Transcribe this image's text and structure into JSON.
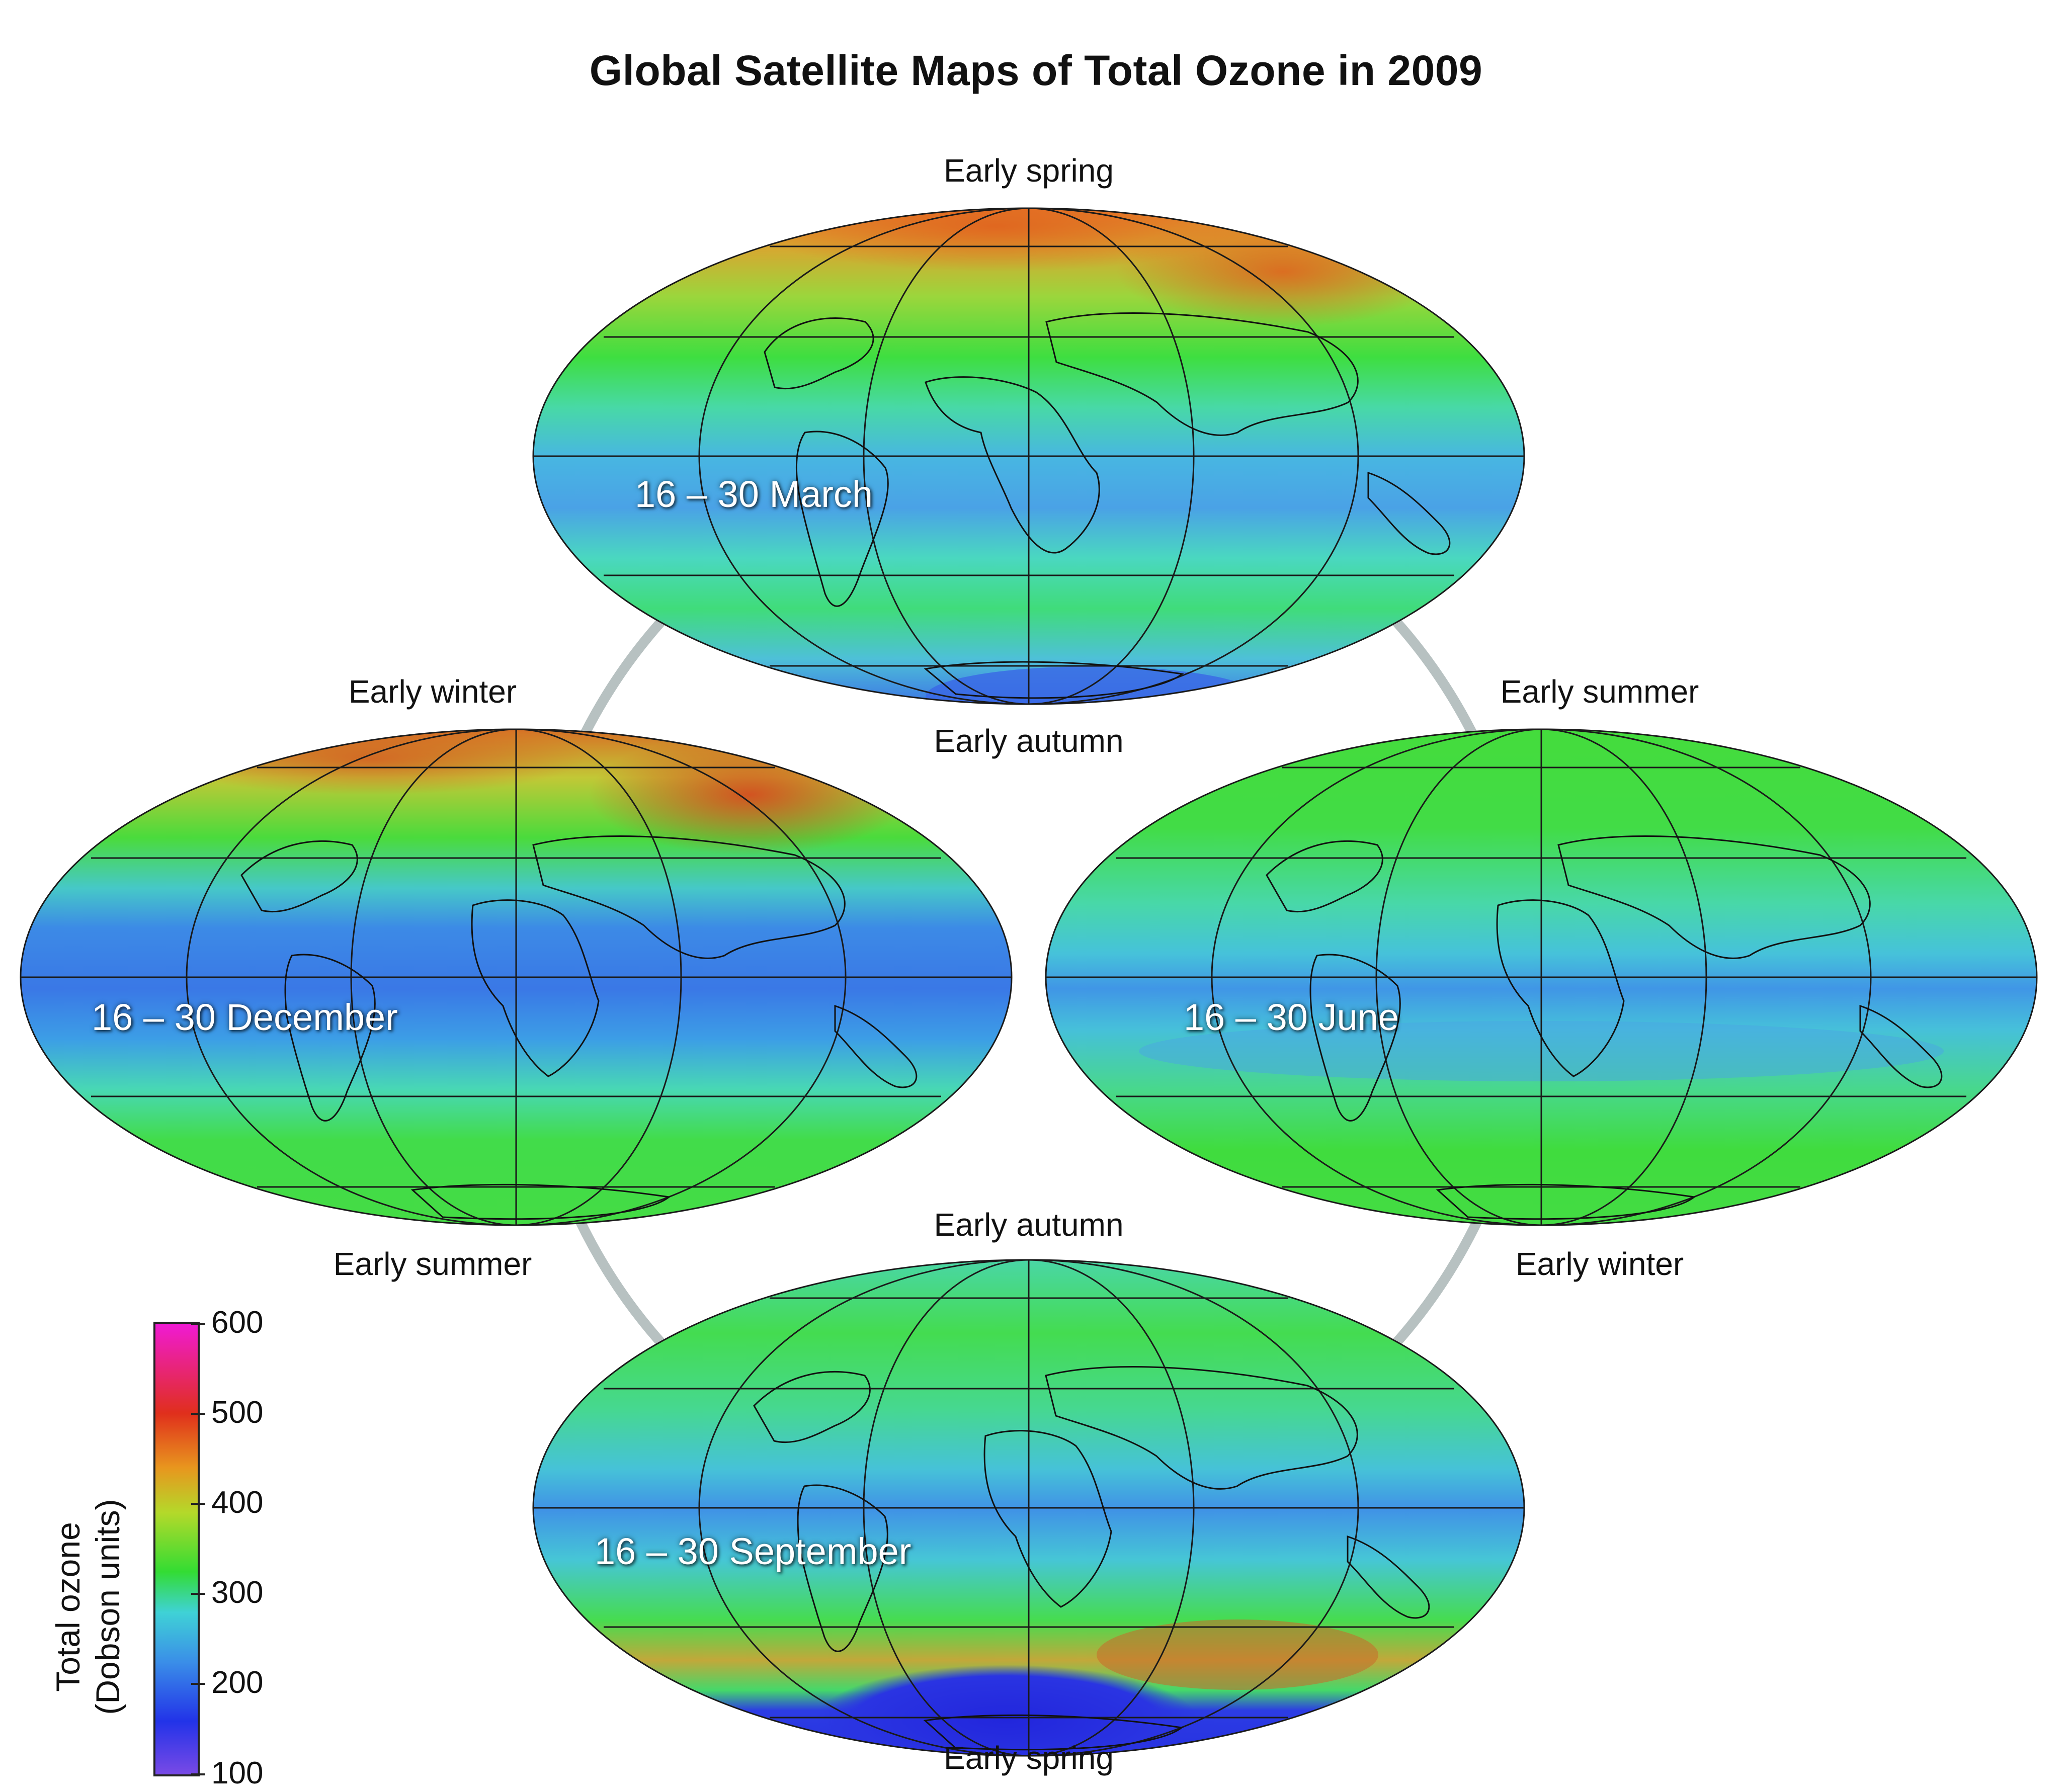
{
  "title": "Global Satellite Maps of Total Ozone in 2009",
  "maps": [
    {
      "id": "march",
      "date_label": "16 – 30 March",
      "top_label": "Early spring",
      "bottom_label": "Early autumn"
    },
    {
      "id": "december",
      "date_label": "16 – 30 December",
      "top_label": "Early winter",
      "bottom_label": "Early summer"
    },
    {
      "id": "june",
      "date_label": "16 – 30 June",
      "top_label": "Early summer",
      "bottom_label": "Early winter"
    },
    {
      "id": "september",
      "date_label": "16 – 30 September",
      "top_label": "Early autumn",
      "bottom_label": "Early spring"
    }
  ],
  "colorbar": {
    "title_line1": "Total ozone",
    "title_line2": "(Dobson units)",
    "ticks": [
      "600",
      "500",
      "400",
      "300",
      "200",
      "100"
    ],
    "range": [
      100,
      600
    ],
    "colors": [
      "#7a4ae6",
      "#2233e8",
      "#3a8ee8",
      "#3fd2d6",
      "#33dc33",
      "#b4d92a",
      "#e8961e",
      "#e02f1c",
      "#f01ad6"
    ]
  },
  "colors": {
    "ring": "#b7c1c1",
    "grid": "#1a1a1a"
  }
}
